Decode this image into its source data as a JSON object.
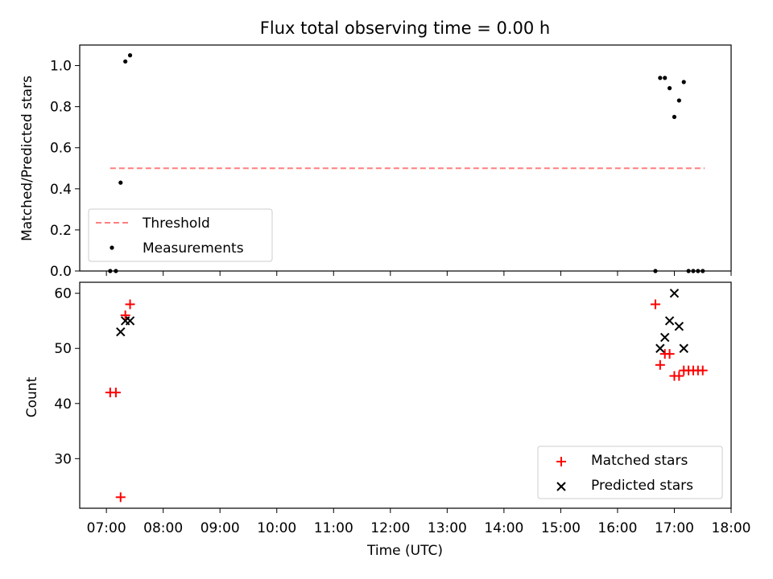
{
  "title": "Flux total observing time = 0.00 h",
  "colors": {
    "threshold": "#ff7f7f",
    "measurements": "#000000",
    "matched": "#ff0000",
    "predicted": "#000000"
  },
  "chart_data": [
    {
      "type": "scatter",
      "ylabel": "Matched/Predicted stars",
      "ylim": [
        0.0,
        1.1
      ],
      "yticks": [
        0.0,
        0.2,
        0.4,
        0.6,
        0.8,
        1.0
      ],
      "ytick_labels": [
        "0.0",
        "0.2",
        "0.4",
        "0.6",
        "0.8",
        "1.0"
      ],
      "xlim_hours": [
        6.53,
        18.0
      ],
      "legend": {
        "placement": "lower-left",
        "entries": [
          "Threshold",
          "Measurements"
        ]
      },
      "threshold": {
        "name": "Threshold",
        "style": "dashed",
        "x": [
          "07:04",
          "17:32"
        ],
        "y": 0.5
      },
      "series": [
        {
          "name": "Measurements",
          "x": [
            "07:04",
            "07:10",
            "07:15",
            "07:20",
            "07:25",
            "16:40",
            "16:45",
            "16:50",
            "16:55",
            "17:00",
            "17:05",
            "17:10",
            "17:15",
            "17:20",
            "17:25",
            "17:30"
          ],
          "y": [
            0.0,
            0.0,
            0.43,
            1.02,
            1.05,
            0.0,
            0.94,
            0.94,
            0.89,
            0.75,
            0.83,
            0.92,
            0.0,
            0.0,
            0.0,
            0.0
          ]
        }
      ]
    },
    {
      "type": "scatter",
      "ylabel": "Count",
      "xlabel": "Time (UTC)",
      "ylim": [
        21,
        62
      ],
      "yticks": [
        30,
        40,
        50,
        60
      ],
      "ytick_labels": [
        "30",
        "40",
        "50",
        "60"
      ],
      "xlim_hours": [
        6.53,
        18.0
      ],
      "xticks": [
        "07:00",
        "08:00",
        "09:00",
        "10:00",
        "11:00",
        "12:00",
        "13:00",
        "14:00",
        "15:00",
        "16:00",
        "17:00",
        "18:00"
      ],
      "legend": {
        "placement": "lower-right",
        "entries": [
          "Matched stars",
          "Predicted stars"
        ]
      },
      "series": [
        {
          "name": "Matched stars",
          "marker": "+",
          "x": [
            "07:04",
            "07:10",
            "07:15",
            "07:20",
            "07:25",
            "16:40",
            "16:45",
            "16:50",
            "16:55",
            "17:00",
            "17:05",
            "17:10",
            "17:15",
            "17:20",
            "17:25",
            "17:30"
          ],
          "y": [
            42,
            42,
            23,
            56,
            58,
            58,
            47,
            49,
            49,
            45,
            45,
            46,
            46,
            46,
            46,
            46
          ]
        },
        {
          "name": "Predicted stars",
          "marker": "x",
          "x": [
            "07:15",
            "07:20",
            "07:25",
            "16:45",
            "16:50",
            "16:55",
            "17:00",
            "17:05",
            "17:10"
          ],
          "y": [
            53,
            55,
            55,
            50,
            52,
            55,
            60,
            54,
            50
          ]
        }
      ]
    }
  ]
}
